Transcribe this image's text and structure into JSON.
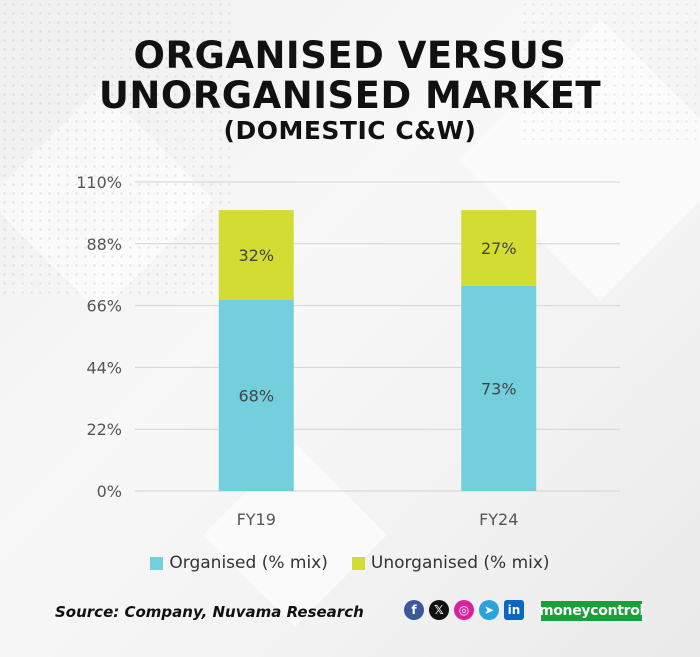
{
  "title_line1": "ORGANISED VERSUS",
  "title_line2": "UNORGANISED MARKET",
  "subtitle": "(DOMESTIC C&W)",
  "source": "Source: Company, Nuvama Research",
  "brand": "moneycontrol",
  "social_icons": [
    "facebook-icon",
    "x-icon",
    "instagram-icon",
    "telegram-icon",
    "linkedin-icon"
  ],
  "colors": {
    "organised": "#74cfdd",
    "unorganised": "#d2dc33",
    "grid": "#d4d4d4",
    "axis_text": "#555555",
    "brand_bg": "#1a9f3b"
  },
  "chart_data": {
    "type": "bar",
    "stacked": true,
    "categories": [
      "FY19",
      "FY24"
    ],
    "series": [
      {
        "name": "Organised (% mix)",
        "values": [
          68,
          73
        ],
        "labels": [
          "68%",
          "73%"
        ]
      },
      {
        "name": "Unorganised (% mix)",
        "values": [
          32,
          27
        ],
        "labels": [
          "32%",
          "27%"
        ]
      }
    ],
    "yticks": [
      "0%",
      "22%",
      "44%",
      "66%",
      "88%",
      "110%"
    ],
    "ylim": [
      0,
      110
    ],
    "grid": true,
    "legend_position": "bottom"
  }
}
